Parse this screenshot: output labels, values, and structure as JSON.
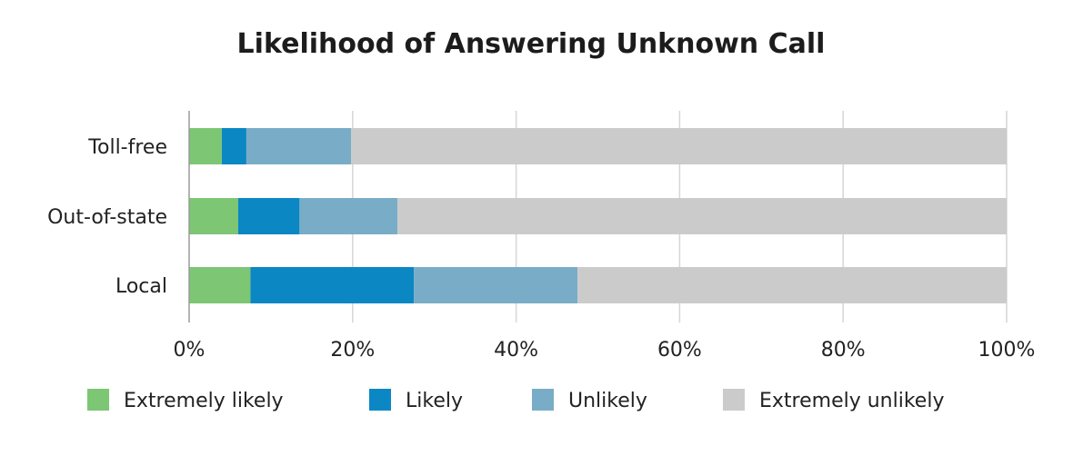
{
  "colors": {
    "extremely_likely": "#7dc674",
    "likely": "#0b87c4",
    "unlikely": "#79adc7",
    "extremely_unlikely": "#cbcbcb",
    "grid": "#d6d6d6",
    "axis": "#9a9a9a",
    "text": "#222222"
  },
  "chart_data": {
    "type": "bar",
    "orientation": "horizontal",
    "stacked": true,
    "title": "Likelihood of Answering Unknown Call",
    "xlabel": "",
    "ylabel": "",
    "xlim": [
      0,
      100
    ],
    "x_ticks": [
      0,
      20,
      40,
      60,
      80,
      100
    ],
    "x_tick_labels": [
      "0%",
      "20%",
      "40%",
      "60%",
      "80%",
      "100%"
    ],
    "categories": [
      "Toll-free",
      "Out-of-state",
      "Local"
    ],
    "series": [
      {
        "name": "Extremely likely",
        "color_key": "extremely_likely",
        "values": [
          4,
          6,
          7.5
        ]
      },
      {
        "name": "Likely",
        "color_key": "likely",
        "values": [
          3,
          7.5,
          20
        ]
      },
      {
        "name": "Unlikely",
        "color_key": "unlikely",
        "values": [
          12.8,
          12,
          20
        ]
      },
      {
        "name": "Extremely unlikely",
        "color_key": "extremely_unlikely",
        "values": [
          80.2,
          74.5,
          52.5
        ]
      }
    ],
    "grid": true,
    "legend_position": "bottom"
  }
}
